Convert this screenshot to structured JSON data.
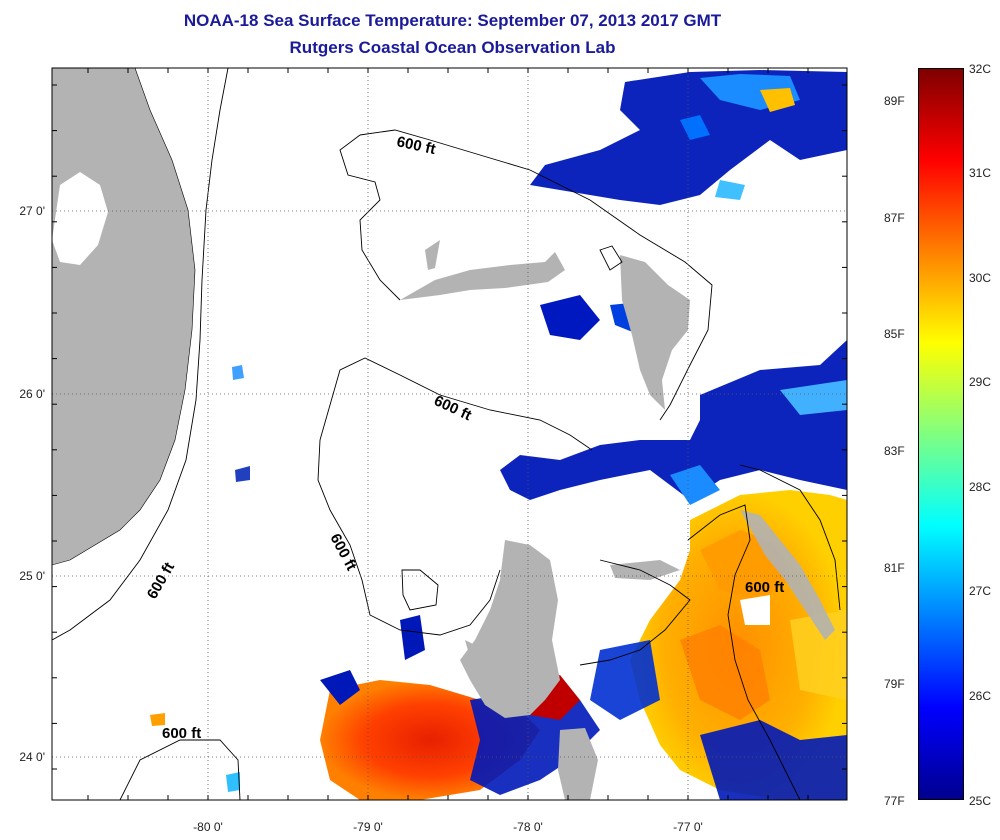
{
  "header": {
    "title": "NOAA-18 Sea Surface Temperature:  September 07, 2013 2017 GMT",
    "subtitle": "Rutgers Coastal Ocean Observation Lab"
  },
  "axes": {
    "lon_ticks": [
      "-80 0'",
      "-79 0'",
      "-78 0'",
      "-77 0'"
    ],
    "lat_ticks": [
      "27 0'",
      "26 0'",
      "25 0'",
      "24 0'"
    ]
  },
  "isobath_labels": [
    "600 ft",
    "600 ft",
    "600 ft",
    "600 ft",
    "600 ft",
    "600 ft"
  ],
  "colorbar": {
    "celsius": [
      "32C",
      "31C",
      "30C",
      "29C",
      "28C",
      "27C",
      "26C",
      "25C"
    ],
    "fahrenheit": [
      "89F",
      "87F",
      "85F",
      "83F",
      "81F",
      "79F",
      "77F"
    ],
    "colors": [
      "#7f0000",
      "#ff0000",
      "#ff8000",
      "#ffff00",
      "#80ff80",
      "#00ffff",
      "#0080ff",
      "#0000ff",
      "#00008f"
    ]
  },
  "colors": {
    "land": "#b3b3b3",
    "title": "#1a1a9a",
    "background": "#ffffff"
  }
}
